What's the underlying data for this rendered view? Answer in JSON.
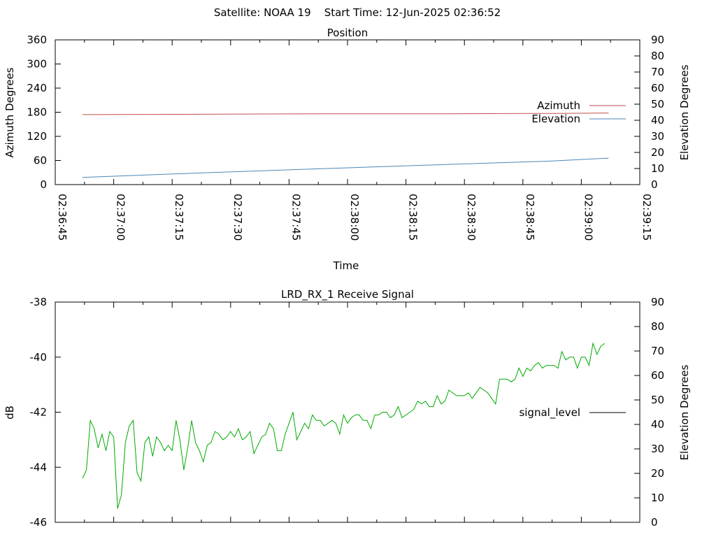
{
  "header": {
    "text": "Satellite: NOAA 19    Start Time: 12-Jun-2025 02:36:52"
  },
  "chart_data": [
    {
      "type": "line",
      "title": "Position",
      "xlabel": "Time",
      "ylabel": "Azimuth Degrees",
      "y2label": "Elevation Degrees",
      "xlim": [
        "02:36:45",
        "02:39:15"
      ],
      "ylim": [
        0,
        360
      ],
      "y2lim": [
        0,
        90
      ],
      "x_tick_labels": [
        "02:36:45",
        "02:37:00",
        "02:37:15",
        "02:37:30",
        "02:37:45",
        "02:38:00",
        "02:38:15",
        "02:38:30",
        "02:38:45",
        "02:39:00",
        "02:39:15"
      ],
      "y_tick_labels": [
        "0",
        "60",
        "120",
        "180",
        "240",
        "300",
        "360"
      ],
      "y2_tick_labels": [
        "0",
        "10",
        "20",
        "30",
        "40",
        "50",
        "60",
        "70",
        "80",
        "90"
      ],
      "legend_placement": "right",
      "series": [
        {
          "name": "Azimuth",
          "axis": "y",
          "color": "#c0504d",
          "x": [
            "02:36:52",
            "02:37:22",
            "02:37:52",
            "02:38:22",
            "02:38:52",
            "02:39:07"
          ],
          "y": [
            174,
            175,
            176,
            176,
            177,
            178
          ]
        },
        {
          "name": "Elevation",
          "axis": "y2",
          "color": "#4a86b8",
          "x": [
            "02:36:52",
            "02:37:22",
            "02:37:52",
            "02:38:22",
            "02:38:52",
            "02:39:07"
          ],
          "y": [
            4.5,
            7.2,
            9.8,
            12.2,
            14.6,
            16.5
          ]
        }
      ]
    },
    {
      "type": "line",
      "title": "LRD_RX_1 Receive Signal",
      "ylabel": "dB",
      "y2label": "Elevation Degrees",
      "xlim": [
        "02:36:45",
        "02:39:15"
      ],
      "ylim": [
        -46,
        -38
      ],
      "y2lim": [
        0,
        90
      ],
      "y_tick_labels": [
        "-46",
        "-44",
        "-42",
        "-40",
        "-38"
      ],
      "y2_tick_labels": [
        "0",
        "10",
        "20",
        "30",
        "40",
        "50",
        "60",
        "70",
        "80",
        "90"
      ],
      "legend_placement": "right",
      "series": [
        {
          "name": "signal_level",
          "color": "#00aa00",
          "x_start": "02:36:52",
          "x_step_seconds": 1,
          "y": [
            -44.4,
            -44.1,
            -42.3,
            -42.6,
            -43.3,
            -42.8,
            -43.4,
            -42.7,
            -42.9,
            -45.5,
            -45.0,
            -43.1,
            -42.5,
            -42.3,
            -44.2,
            -44.5,
            -43.1,
            -42.9,
            -43.6,
            -42.9,
            -43.1,
            -43.4,
            -43.2,
            -43.4,
            -42.3,
            -43.0,
            -44.1,
            -43.3,
            -42.3,
            -43.1,
            -43.4,
            -43.8,
            -43.2,
            -43.1,
            -42.7,
            -42.8,
            -43.0,
            -42.9,
            -42.7,
            -42.9,
            -42.6,
            -43.0,
            -42.9,
            -42.7,
            -43.5,
            -43.2,
            -42.9,
            -42.8,
            -42.4,
            -42.6,
            -43.4,
            -43.4,
            -42.8,
            -42.4,
            -42.0,
            -43.0,
            -42.7,
            -42.4,
            -42.6,
            -42.1,
            -42.3,
            -42.3,
            -42.5,
            -42.4,
            -42.3,
            -42.4,
            -42.8,
            -42.1,
            -42.4,
            -42.2,
            -42.1,
            -42.1,
            -42.3,
            -42.3,
            -42.6,
            -42.1,
            -42.1,
            -42.0,
            -42.0,
            -42.2,
            -42.1,
            -41.8,
            -42.2,
            -42.1,
            -42.0,
            -41.9,
            -41.6,
            -41.7,
            -41.6,
            -41.8,
            -41.8,
            -41.4,
            -41.7,
            -41.6,
            -41.2,
            -41.3,
            -41.4,
            -41.4,
            -41.4,
            -41.3,
            -41.5,
            -41.3,
            -41.1,
            -41.2,
            -41.3,
            -41.5,
            -41.7,
            -40.8,
            -40.8,
            -40.8,
            -40.9,
            -40.8,
            -40.4,
            -40.7,
            -40.4,
            -40.5,
            -40.3,
            -40.2,
            -40.4,
            -40.3,
            -40.3,
            -40.3,
            -40.4,
            -39.8,
            -40.1,
            -40.0,
            -40.0,
            -40.4,
            -40.0,
            -40.0,
            -40.3,
            -39.5,
            -39.9,
            -39.6,
            -39.5
          ]
        }
      ]
    }
  ]
}
